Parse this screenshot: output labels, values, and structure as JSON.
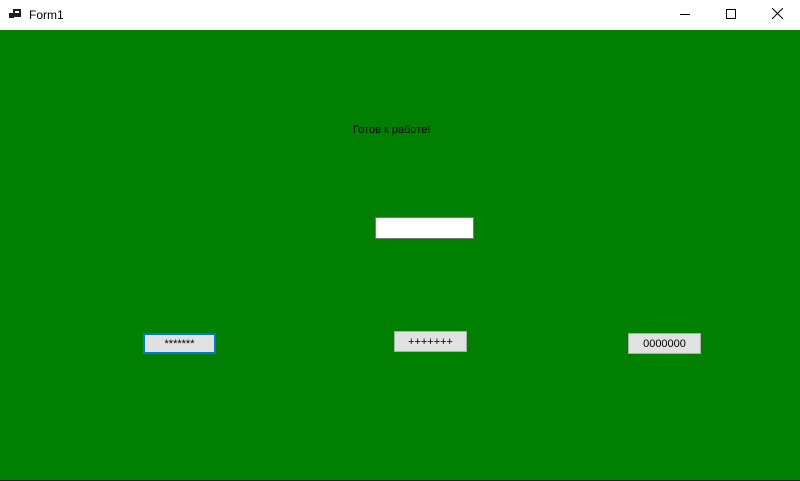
{
  "window": {
    "title": "Form1",
    "app_icon": "form-app-icon",
    "controls": {
      "minimize_icon": "minimize-icon",
      "maximize_icon": "maximize-icon",
      "close_icon": "close-icon"
    },
    "background_color": "#008000"
  },
  "form": {
    "status_label": "Готов к работе!",
    "text_input": {
      "value": "",
      "placeholder": ""
    },
    "buttons": [
      {
        "label": "*******",
        "focused": true
      },
      {
        "label": "+++++++",
        "focused": false
      },
      {
        "label": "0000000",
        "focused": false
      }
    ]
  }
}
